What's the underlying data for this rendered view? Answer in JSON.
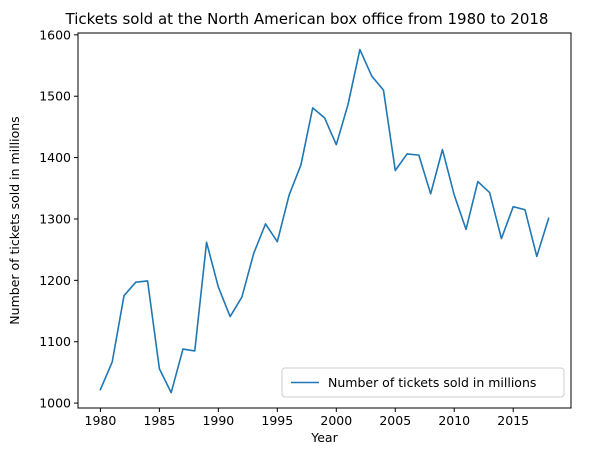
{
  "chart_data": {
    "type": "line",
    "title": "Tickets sold at the North American box office from 1980 to 2018",
    "xlabel": "Year",
    "ylabel": "Number of tickets sold in millions",
    "xlim": [
      1978.1,
      2019.9
    ],
    "ylim": [
      992,
      1603
    ],
    "xticks": [
      1980,
      1985,
      1990,
      1995,
      2000,
      2005,
      2010,
      2015
    ],
    "yticks": [
      1000,
      1100,
      1200,
      1300,
      1400,
      1500,
      1600
    ],
    "grid": false,
    "legend": "lower-right",
    "series": [
      {
        "name": "Number of tickets sold in millions",
        "color": "#1f77b4",
        "x": [
          1980,
          1981,
          1982,
          1983,
          1984,
          1985,
          1986,
          1987,
          1988,
          1989,
          1990,
          1991,
          1992,
          1993,
          1994,
          1995,
          1996,
          1997,
          1998,
          1999,
          2000,
          2001,
          2002,
          2003,
          2004,
          2005,
          2006,
          2007,
          2008,
          2009,
          2010,
          2011,
          2012,
          2013,
          2014,
          2015,
          2016,
          2017,
          2018
        ],
        "y": [
          1022,
          1067,
          1175,
          1197,
          1199,
          1056,
          1017,
          1088,
          1085,
          1262,
          1189,
          1141,
          1173,
          1244,
          1292,
          1263,
          1339,
          1388,
          1481,
          1465,
          1421,
          1487,
          1576,
          1533,
          1510,
          1379,
          1406,
          1404,
          1341,
          1413,
          1339,
          1283,
          1361,
          1343,
          1268,
          1320,
          1315,
          1239,
          1301
        ]
      }
    ]
  }
}
